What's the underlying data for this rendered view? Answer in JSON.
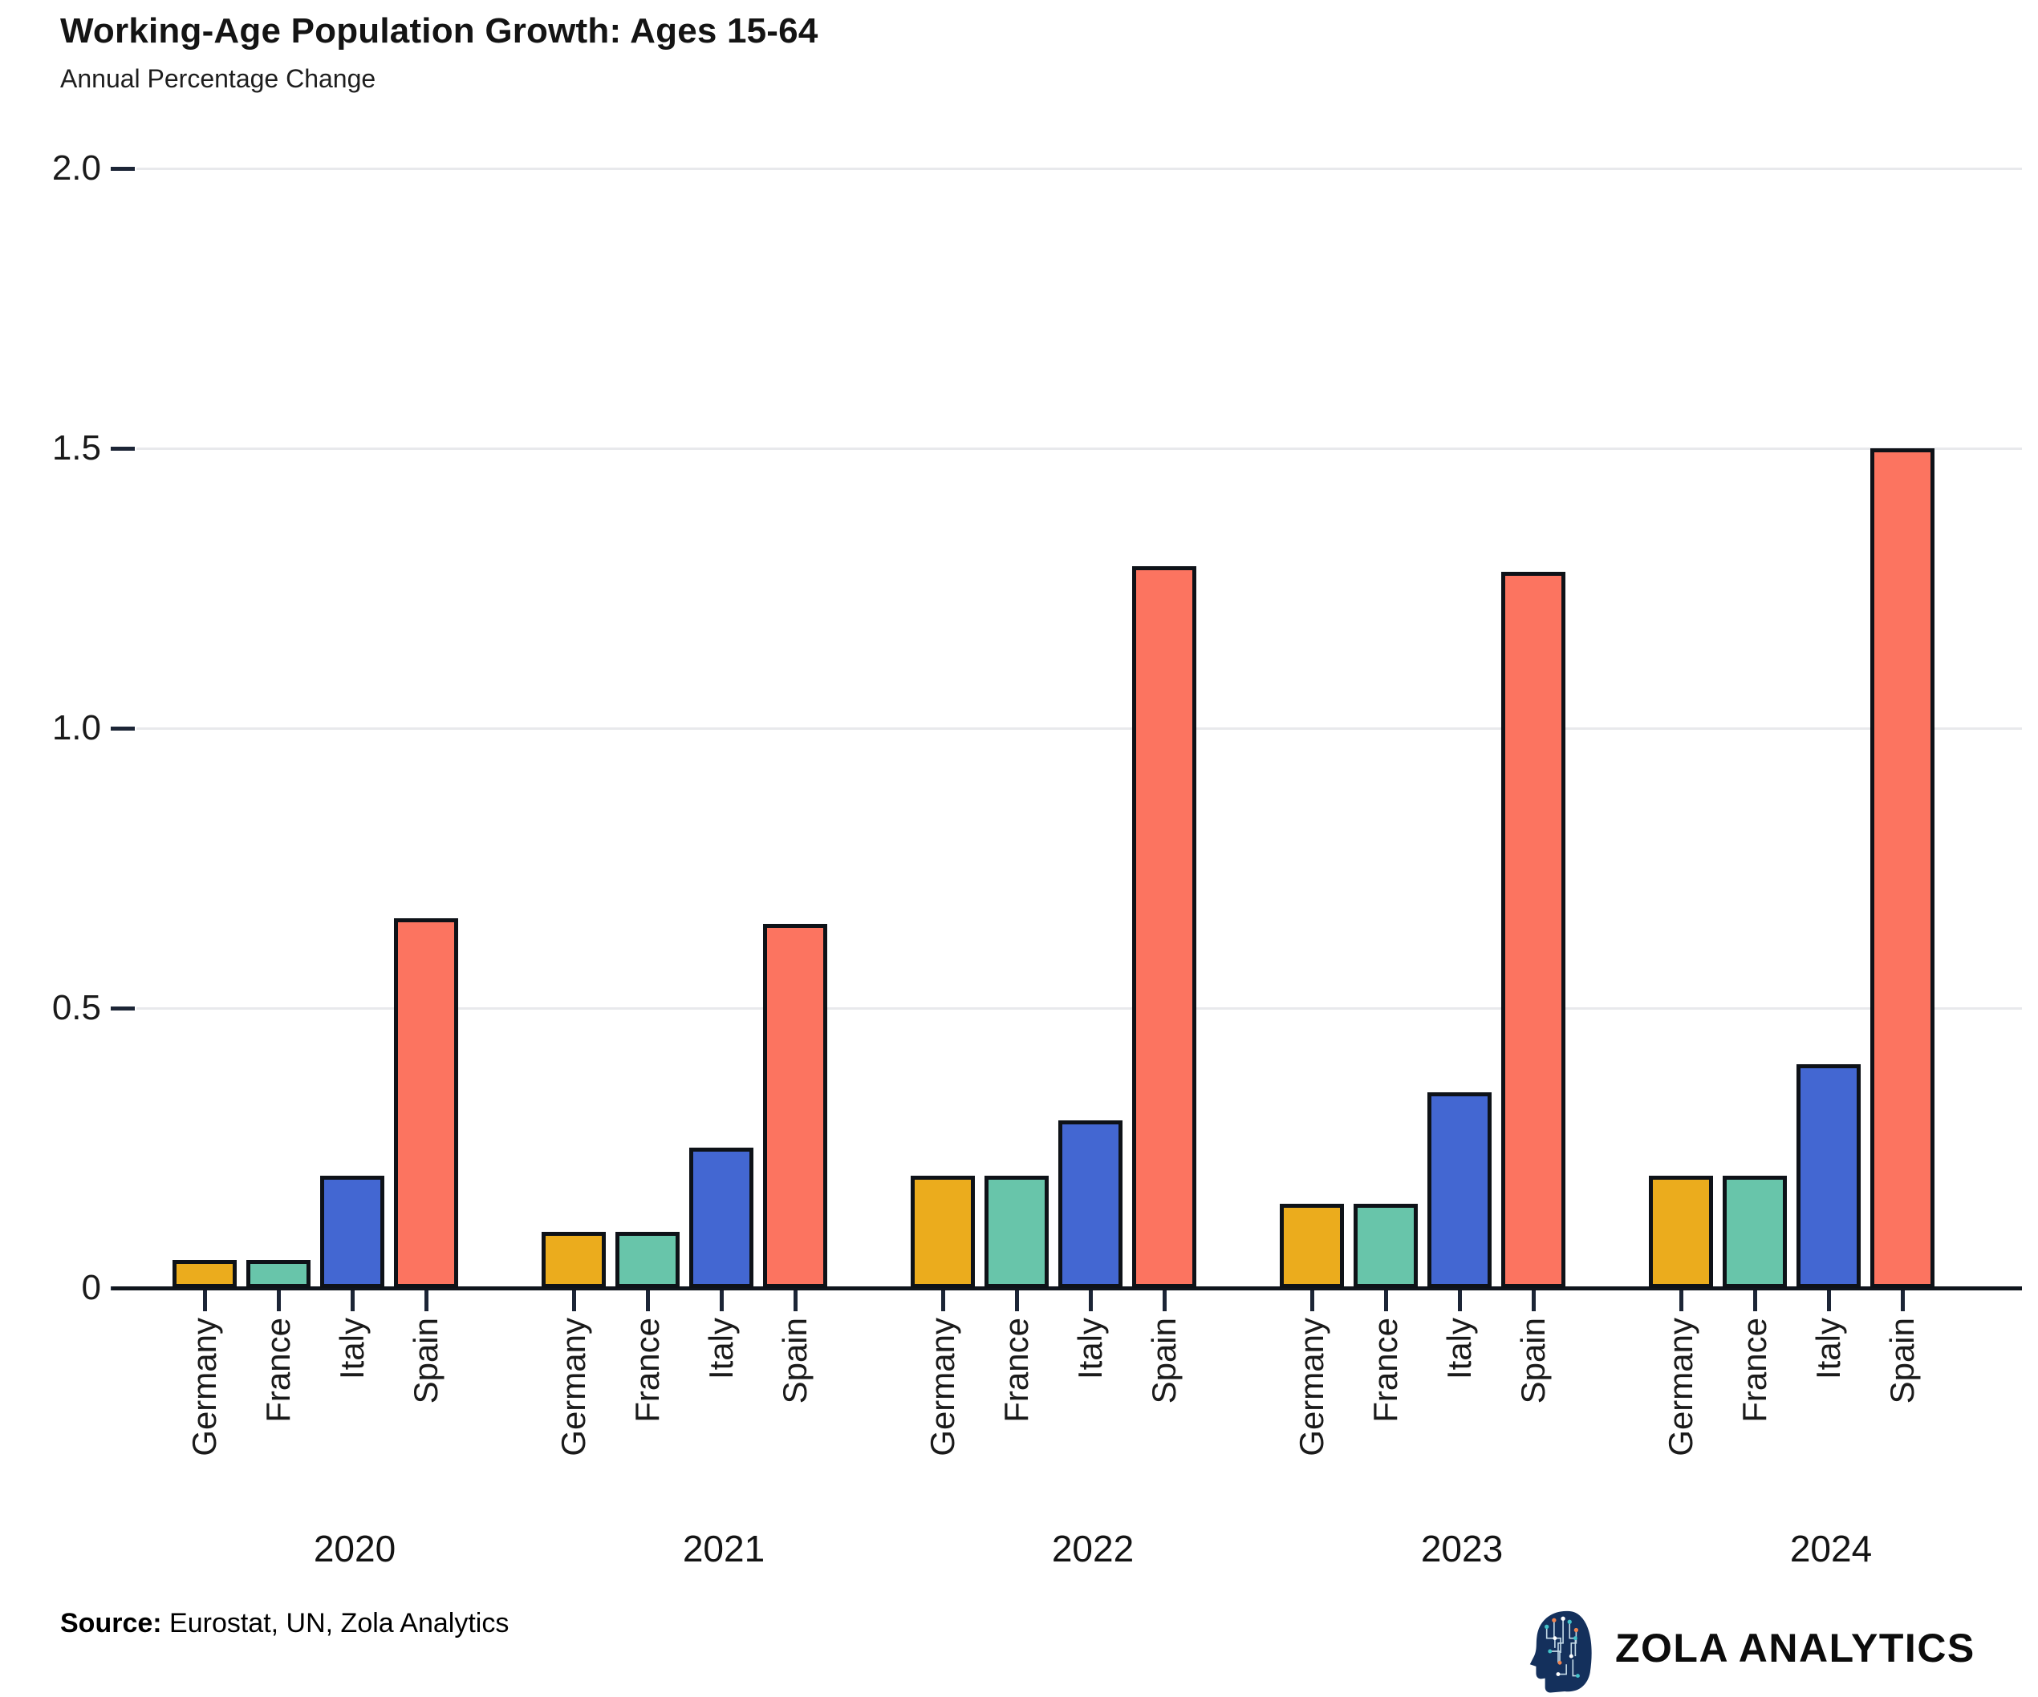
{
  "header": {
    "title": "Working-Age Population Growth: Ages 15-64",
    "subtitle": "Annual Percentage Change"
  },
  "chart_data": {
    "type": "bar",
    "categories": [
      "2020",
      "2021",
      "2022",
      "2023",
      "2024"
    ],
    "series": [
      {
        "name": "Germany",
        "color": "#EBAC1D",
        "values": [
          0.05,
          0.1,
          0.2,
          0.15,
          0.2
        ]
      },
      {
        "name": "France",
        "color": "#68C5AA",
        "values": [
          0.05,
          0.1,
          0.2,
          0.15,
          0.2
        ]
      },
      {
        "name": "Italy",
        "color": "#4367D2",
        "values": [
          0.2,
          0.25,
          0.3,
          0.35,
          0.4
        ]
      },
      {
        "name": "Spain",
        "color": "#FC7460",
        "values": [
          0.66,
          0.65,
          1.29,
          1.28,
          1.5
        ]
      }
    ],
    "ylim": [
      0,
      2.0
    ],
    "yticks": [
      0,
      0.5,
      1.0,
      1.5,
      2.0
    ],
    "ytick_labels": [
      "0",
      "0.5",
      "1.0",
      "1.5",
      "2.0"
    ],
    "grid": true,
    "legend": "none",
    "bar_outline_color": "#0e1218"
  },
  "footer": {
    "source_label": "Source:",
    "source_text": " Eurostat, UN, Zola Analytics",
    "brand": "ZOLA ANALYTICS"
  }
}
